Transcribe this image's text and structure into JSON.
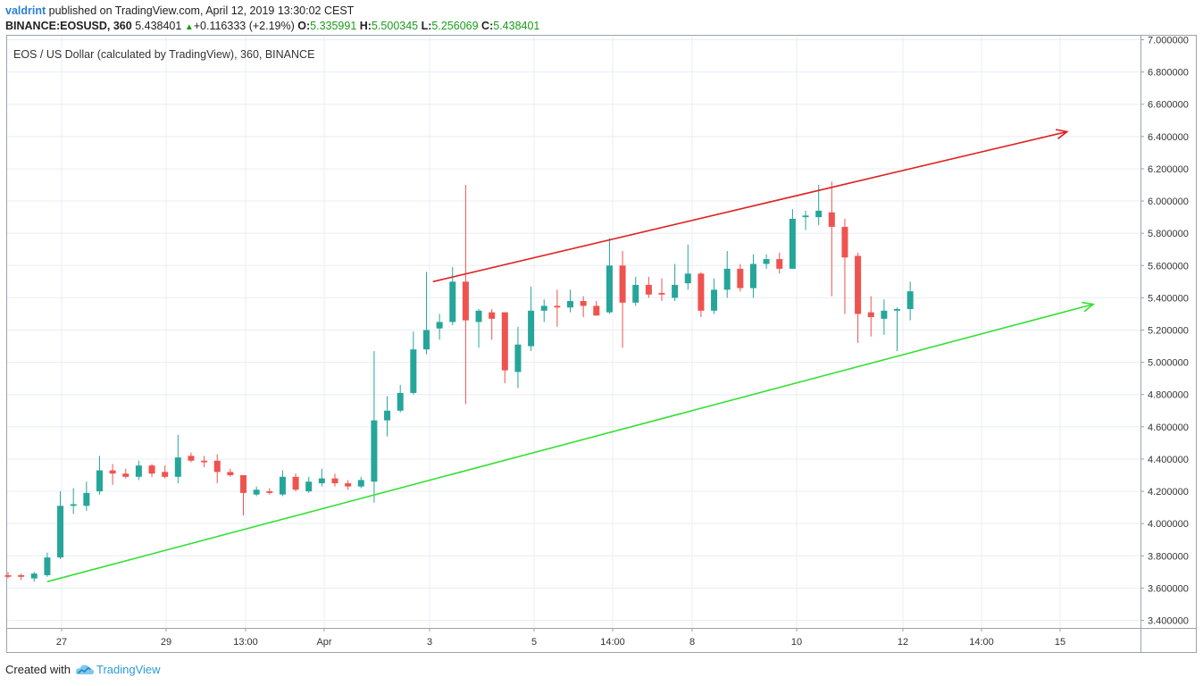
{
  "header": {
    "author": "valdrint",
    "published_text": "published on TradingView.com, April 12, 2019 13:30:02 CEST",
    "symbol": "BINANCE:EOSUSD, 360",
    "last": "5.438401",
    "change_arrow": "▲",
    "change": "+0.116333 (+2.19%)",
    "o_label": "O:",
    "o_value": "5.335991",
    "h_label": "H:",
    "h_value": "5.500345",
    "l_label": "L:",
    "l_value": "5.256069",
    "c_label": "C:",
    "c_value": "5.438401"
  },
  "footer": {
    "created_with": "Created with",
    "brand": "TradingView",
    "brand_icon": "tradingview-cloud-icon"
  },
  "colors": {
    "up": "#26a69a",
    "down": "#ef5350",
    "resistance": "#e02020",
    "support": "#33e033",
    "grid": "#e8eef4",
    "axis_text": "#333333"
  },
  "chart_data": {
    "type": "candlestick",
    "title": "EOS / US Dollar (calculated by TradingView), 360, BINANCE",
    "ylim": [
      3.32,
      7.02
    ],
    "y_ticks": [
      "3.400000",
      "3.600000",
      "3.800000",
      "4.000000",
      "4.200000",
      "4.400000",
      "4.600000",
      "4.800000",
      "5.000000",
      "5.200000",
      "5.400000",
      "5.600000",
      "5.800000",
      "6.000000",
      "6.200000",
      "6.400000",
      "6.600000",
      "6.800000",
      "7.000000"
    ],
    "x_ticks": [
      "27",
      "29",
      "13:00",
      "Apr",
      "3",
      "5",
      "14:00",
      "8",
      "10",
      "12",
      "14:00",
      "15"
    ],
    "grid": true,
    "candles": [
      {
        "o": 3.68,
        "h": 3.7,
        "l": 3.66,
        "c": 3.67
      },
      {
        "o": 3.68,
        "h": 3.69,
        "l": 3.65,
        "c": 3.67
      },
      {
        "o": 3.66,
        "h": 3.7,
        "l": 3.64,
        "c": 3.69
      },
      {
        "o": 3.68,
        "h": 3.82,
        "l": 3.67,
        "c": 3.79
      },
      {
        "o": 3.79,
        "h": 4.2,
        "l": 3.78,
        "c": 4.11
      },
      {
        "o": 4.11,
        "h": 4.22,
        "l": 4.06,
        "c": 4.12
      },
      {
        "o": 4.11,
        "h": 4.26,
        "l": 4.08,
        "c": 4.19
      },
      {
        "o": 4.2,
        "h": 4.42,
        "l": 4.18,
        "c": 4.33
      },
      {
        "o": 4.33,
        "h": 4.37,
        "l": 4.24,
        "c": 4.31
      },
      {
        "o": 4.31,
        "h": 4.34,
        "l": 4.28,
        "c": 4.29
      },
      {
        "o": 4.29,
        "h": 4.39,
        "l": 4.27,
        "c": 4.36
      },
      {
        "o": 4.36,
        "h": 4.37,
        "l": 4.29,
        "c": 4.31
      },
      {
        "o": 4.32,
        "h": 4.36,
        "l": 4.28,
        "c": 4.29
      },
      {
        "o": 4.29,
        "h": 4.55,
        "l": 4.25,
        "c": 4.41
      },
      {
        "o": 4.42,
        "h": 4.44,
        "l": 4.38,
        "c": 4.39
      },
      {
        "o": 4.39,
        "h": 4.42,
        "l": 4.35,
        "c": 4.38
      },
      {
        "o": 4.39,
        "h": 4.43,
        "l": 4.25,
        "c": 4.32
      },
      {
        "o": 4.32,
        "h": 4.34,
        "l": 4.29,
        "c": 4.3
      },
      {
        "o": 4.3,
        "h": 4.3,
        "l": 4.05,
        "c": 4.19
      },
      {
        "o": 4.18,
        "h": 4.23,
        "l": 4.17,
        "c": 4.21
      },
      {
        "o": 4.2,
        "h": 4.22,
        "l": 4.18,
        "c": 4.19
      },
      {
        "o": 4.18,
        "h": 4.33,
        "l": 4.17,
        "c": 4.29
      },
      {
        "o": 4.29,
        "h": 4.31,
        "l": 4.2,
        "c": 4.21
      },
      {
        "o": 4.2,
        "h": 4.29,
        "l": 4.19,
        "c": 4.26
      },
      {
        "o": 4.25,
        "h": 4.34,
        "l": 4.23,
        "c": 4.28
      },
      {
        "o": 4.28,
        "h": 4.31,
        "l": 4.23,
        "c": 4.25
      },
      {
        "o": 4.25,
        "h": 4.27,
        "l": 4.21,
        "c": 4.23
      },
      {
        "o": 4.23,
        "h": 4.29,
        "l": 4.22,
        "c": 4.27
      },
      {
        "o": 4.26,
        "h": 5.07,
        "l": 4.13,
        "c": 4.64
      },
      {
        "o": 4.64,
        "h": 4.79,
        "l": 4.54,
        "c": 4.7
      },
      {
        "o": 4.7,
        "h": 4.86,
        "l": 4.69,
        "c": 4.81
      },
      {
        "o": 4.81,
        "h": 5.19,
        "l": 4.8,
        "c": 5.08
      },
      {
        "o": 5.08,
        "h": 5.56,
        "l": 5.05,
        "c": 5.2
      },
      {
        "o": 5.21,
        "h": 5.3,
        "l": 5.14,
        "c": 5.25
      },
      {
        "o": 5.25,
        "h": 5.59,
        "l": 5.23,
        "c": 5.5
      },
      {
        "o": 5.5,
        "h": 6.1,
        "l": 4.74,
        "c": 5.26
      },
      {
        "o": 5.25,
        "h": 5.33,
        "l": 5.09,
        "c": 5.32
      },
      {
        "o": 5.31,
        "h": 5.33,
        "l": 5.14,
        "c": 5.27
      },
      {
        "o": 5.31,
        "h": 5.31,
        "l": 4.87,
        "c": 4.95
      },
      {
        "o": 4.94,
        "h": 5.22,
        "l": 4.84,
        "c": 5.11
      },
      {
        "o": 5.1,
        "h": 5.47,
        "l": 5.07,
        "c": 5.32
      },
      {
        "o": 5.32,
        "h": 5.39,
        "l": 5.25,
        "c": 5.35
      },
      {
        "o": 5.35,
        "h": 5.45,
        "l": 5.22,
        "c": 5.34
      },
      {
        "o": 5.34,
        "h": 5.45,
        "l": 5.31,
        "c": 5.38
      },
      {
        "o": 5.38,
        "h": 5.41,
        "l": 5.28,
        "c": 5.35
      },
      {
        "o": 5.35,
        "h": 5.38,
        "l": 5.29,
        "c": 5.29
      },
      {
        "o": 5.31,
        "h": 5.77,
        "l": 5.3,
        "c": 5.6
      },
      {
        "o": 5.6,
        "h": 5.69,
        "l": 5.09,
        "c": 5.37
      },
      {
        "o": 5.37,
        "h": 5.53,
        "l": 5.35,
        "c": 5.48
      },
      {
        "o": 5.48,
        "h": 5.53,
        "l": 5.4,
        "c": 5.42
      },
      {
        "o": 5.43,
        "h": 5.52,
        "l": 5.38,
        "c": 5.42
      },
      {
        "o": 5.4,
        "h": 5.61,
        "l": 5.38,
        "c": 5.48
      },
      {
        "o": 5.49,
        "h": 5.73,
        "l": 5.45,
        "c": 5.55
      },
      {
        "o": 5.55,
        "h": 5.56,
        "l": 5.28,
        "c": 5.32
      },
      {
        "o": 5.32,
        "h": 5.52,
        "l": 5.3,
        "c": 5.45
      },
      {
        "o": 5.45,
        "h": 5.69,
        "l": 5.4,
        "c": 5.58
      },
      {
        "o": 5.58,
        "h": 5.61,
        "l": 5.44,
        "c": 5.46
      },
      {
        "o": 5.46,
        "h": 5.67,
        "l": 5.4,
        "c": 5.61
      },
      {
        "o": 5.61,
        "h": 5.67,
        "l": 5.58,
        "c": 5.64
      },
      {
        "o": 5.64,
        "h": 5.68,
        "l": 5.55,
        "c": 5.58
      },
      {
        "o": 5.58,
        "h": 5.95,
        "l": 5.58,
        "c": 5.89
      },
      {
        "o": 5.9,
        "h": 5.94,
        "l": 5.82,
        "c": 5.91
      },
      {
        "o": 5.9,
        "h": 6.1,
        "l": 5.85,
        "c": 5.94
      },
      {
        "o": 5.93,
        "h": 6.12,
        "l": 5.41,
        "c": 5.84
      },
      {
        "o": 5.84,
        "h": 5.89,
        "l": 5.3,
        "c": 5.65
      },
      {
        "o": 5.66,
        "h": 5.68,
        "l": 5.12,
        "c": 5.3
      },
      {
        "o": 5.31,
        "h": 5.41,
        "l": 5.16,
        "c": 5.28
      },
      {
        "o": 5.27,
        "h": 5.39,
        "l": 5.17,
        "c": 5.32
      },
      {
        "o": 5.32,
        "h": 5.34,
        "l": 5.07,
        "c": 5.33
      },
      {
        "o": 5.33,
        "h": 5.5,
        "l": 5.26,
        "c": 5.44
      }
    ],
    "trendlines": [
      {
        "name": "resistance",
        "from_index": 32.5,
        "from_value": 5.5,
        "to_index": 81.0,
        "to_value": 6.43,
        "arrow": true
      },
      {
        "name": "support",
        "from_index": 3.0,
        "from_value": 3.64,
        "to_index": 83.0,
        "to_value": 5.36,
        "arrow": true
      }
    ]
  }
}
